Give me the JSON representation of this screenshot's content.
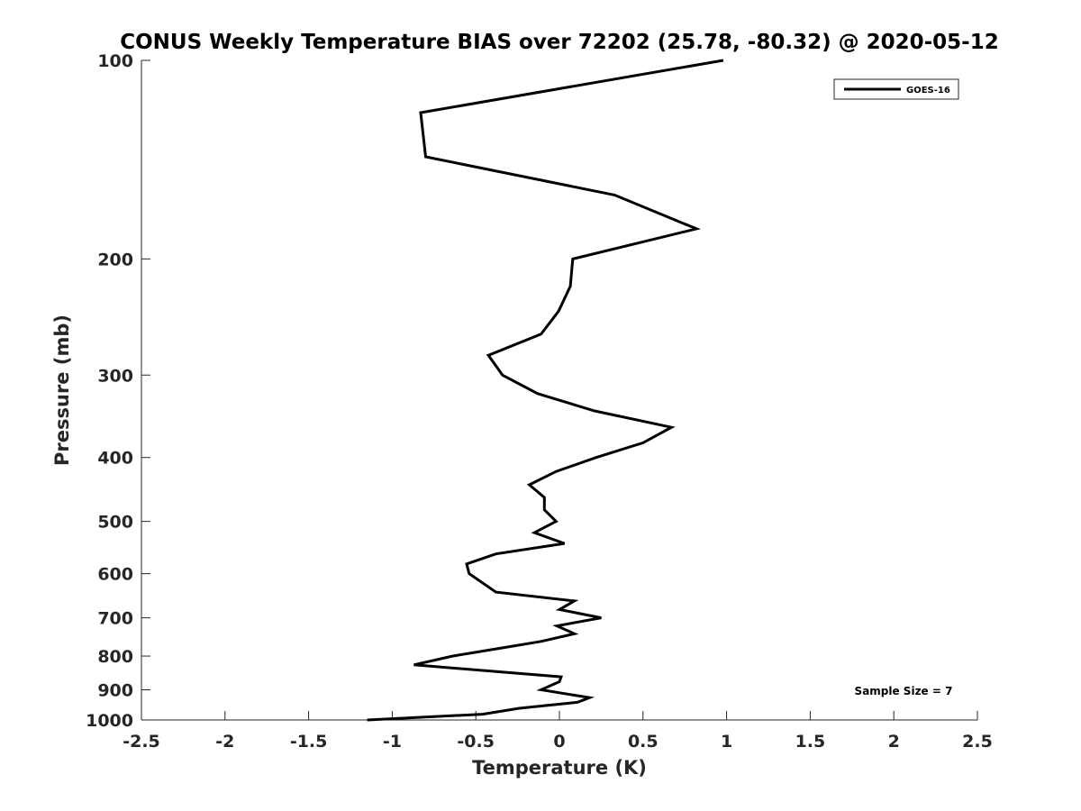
{
  "chart_data": {
    "type": "line",
    "title": "CONUS Weekly Temperature BIAS over 72202 (25.78, -80.32) @ 2020-05-12",
    "xlabel": "Temperature (K)",
    "ylabel": "Pressure (mb)",
    "xlim": [
      -2.5,
      2.5
    ],
    "ylim": [
      100,
      1000
    ],
    "yscale": "log",
    "y_reversed": true,
    "xticks": [
      "-2.5",
      "-2",
      "-1.5",
      "-1",
      "-0.5",
      "0",
      "0.5",
      "1",
      "1.5",
      "2",
      "2.5"
    ],
    "xtick_values": [
      -2.5,
      -2,
      -1.5,
      -1,
      -0.5,
      0,
      0.5,
      1,
      1.5,
      2,
      2.5
    ],
    "yticks": [
      "100",
      "200",
      "300",
      "400",
      "500",
      "600",
      "700",
      "800",
      "900",
      "1000"
    ],
    "ytick_values": [
      100,
      200,
      300,
      400,
      500,
      600,
      700,
      800,
      900,
      1000
    ],
    "legend": {
      "placement": "top-right",
      "entries": [
        "GOES-16"
      ]
    },
    "annotation": "Sample Size = 7",
    "series": [
      {
        "name": "GOES-16",
        "color": "#000000",
        "points": [
          [
            0.98,
            100
          ],
          [
            -0.83,
            120
          ],
          [
            -0.8,
            140
          ],
          [
            0.33,
            160
          ],
          [
            0.82,
            180
          ],
          [
            0.08,
            200
          ],
          [
            0.065,
            220
          ],
          [
            -0.005,
            240
          ],
          [
            -0.11,
            260
          ],
          [
            -0.425,
            280
          ],
          [
            -0.34,
            300
          ],
          [
            -0.13,
            320
          ],
          [
            0.21,
            340
          ],
          [
            0.67,
            360
          ],
          [
            0.5,
            380
          ],
          [
            0.22,
            400
          ],
          [
            -0.02,
            420
          ],
          [
            -0.18,
            440
          ],
          [
            -0.09,
            460
          ],
          [
            -0.09,
            480
          ],
          [
            -0.02,
            500
          ],
          [
            -0.15,
            520
          ],
          [
            0.03,
            540
          ],
          [
            -0.38,
            560
          ],
          [
            -0.555,
            580
          ],
          [
            -0.54,
            600
          ],
          [
            -0.38,
            640
          ],
          [
            0.09,
            660
          ],
          [
            0.0,
            680
          ],
          [
            0.25,
            700
          ],
          [
            -0.015,
            720
          ],
          [
            0.09,
            740
          ],
          [
            -0.11,
            760
          ],
          [
            -0.375,
            780
          ],
          [
            -0.64,
            800
          ],
          [
            -0.87,
            825
          ],
          [
            0.01,
            860
          ],
          [
            0.0,
            875
          ],
          [
            -0.11,
            900
          ],
          [
            0.18,
            925
          ],
          [
            0.11,
            940
          ],
          [
            -0.24,
            960
          ],
          [
            -0.46,
            980
          ],
          [
            -1.15,
            1000
          ]
        ]
      }
    ]
  }
}
